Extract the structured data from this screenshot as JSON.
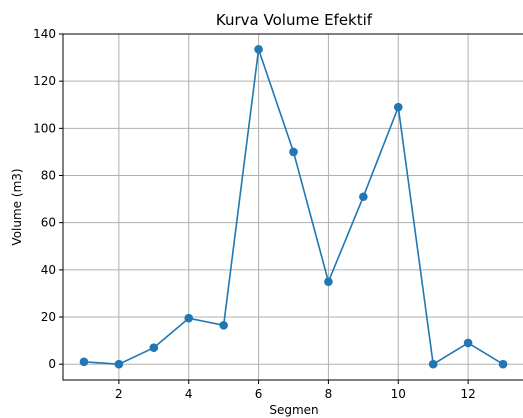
{
  "chart_data": {
    "type": "line",
    "title": "Kurva Volume Efektif",
    "xlabel": "Segmen",
    "ylabel": "Volume (m3)",
    "x": [
      1,
      2,
      3,
      4,
      5,
      6,
      7,
      8,
      9,
      10,
      11,
      12,
      13
    ],
    "series": [
      {
        "values": [
          1,
          0,
          7,
          19.5,
          16.5,
          133.5,
          90,
          35,
          71,
          109,
          0,
          9,
          0
        ],
        "color": "#1f77b4",
        "marker": "circle"
      }
    ],
    "xlim": [
      0.4,
      13.6
    ],
    "ylim": [
      -6.7,
      140
    ],
    "xticks": [
      2,
      4,
      6,
      8,
      10,
      12
    ],
    "yticks": [
      0,
      20,
      40,
      60,
      80,
      100,
      120,
      140
    ],
    "grid": true
  }
}
